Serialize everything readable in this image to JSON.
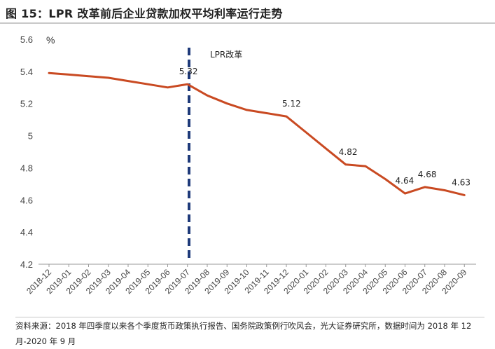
{
  "title": "图 15：LPR 改革前后企业贷款加权平均利率运行走势",
  "source": "资料来源：2018 年四季度以来各个季度货币政策执行报告、国务院政策例行吹风会，光大证券研究所，数据时间为 2018 年 12 月-2020 年 9 月",
  "colors": {
    "line": "#c94a22",
    "vline": "#1f3a7a",
    "axis": "#999999"
  },
  "chart_data": {
    "type": "line",
    "ylabel": "%",
    "ylim": [
      4.2,
      5.6
    ],
    "yticks": [
      "5.6",
      "5.4",
      "5.2",
      "5",
      "4.8",
      "4.6",
      "4.4",
      "4.2"
    ],
    "ytick_values": [
      5.6,
      5.4,
      5.2,
      5.0,
      4.8,
      4.6,
      4.4,
      4.2
    ],
    "categories": [
      "2018-12",
      "2019-01",
      "2019-02",
      "2019-03",
      "2019-04",
      "2019-05",
      "2019-06",
      "2019-07",
      "2019-08",
      "2019-09",
      "2019-10",
      "2019-11",
      "2019-12",
      "2020-01",
      "2020-02",
      "2020-03",
      "2020-04",
      "2020-05",
      "2020-06",
      "2020-07",
      "2020-08",
      "2020-09"
    ],
    "series": [
      {
        "values": [
          5.39,
          5.38,
          5.37,
          5.36,
          5.34,
          5.32,
          5.3,
          5.32,
          5.25,
          5.2,
          5.16,
          5.14,
          5.12,
          5.02,
          4.92,
          4.82,
          4.81,
          4.73,
          4.64,
          4.68,
          4.66,
          4.63
        ]
      }
    ],
    "annotations": [
      {
        "text": "5.32",
        "category": "2019-07",
        "value": 5.32
      },
      {
        "text": "5.12",
        "category": "2019-12",
        "value": 5.12
      },
      {
        "text": "4.82",
        "category": "2020-03",
        "value": 4.82
      },
      {
        "text": "4.64",
        "category": "2020-06",
        "value": 4.64
      },
      {
        "text": "4.68",
        "category": "2020-07",
        "value": 4.68
      },
      {
        "text": "4.63",
        "category": "2020-09",
        "value": 4.63
      }
    ],
    "reference_line": {
      "label": "LPR改革",
      "position_between": [
        "2019-07",
        "2019-08"
      ],
      "style": "dashed"
    },
    "grid": false,
    "legend": "none"
  }
}
